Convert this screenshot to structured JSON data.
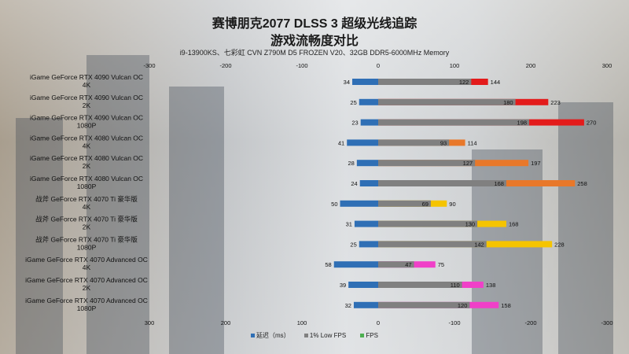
{
  "title_line1": "赛博朋克2077 DLSS 3 超级光线追踪",
  "title_line2": "游戏流畅度对比",
  "subtitle": "i9-13900KS、七彩虹 CVN Z790M D5 FROZEN V20、32GB DDR5-6000MHz Memory",
  "chart_data": {
    "type": "bar",
    "orientation": "horizontal",
    "layout": "diverging, latency drawn to the left of zero, 1% Low FPS and FPS drawn to the right (axis tick labels mirrored)",
    "categories": [
      {
        "line1": "iGame GeForce RTX 4090 Vulcan OC",
        "line2": "4K"
      },
      {
        "line1": "iGame GeForce RTX 4090 Vulcan OC",
        "line2": "2K"
      },
      {
        "line1": "iGame GeForce RTX 4090 Vulcan OC",
        "line2": "1080P"
      },
      {
        "line1": "iGame GeForce RTX 4080 Vulcan OC",
        "line2": "4K"
      },
      {
        "line1": "iGame GeForce RTX 4080 Vulcan OC",
        "line2": "2K"
      },
      {
        "line1": "iGame GeForce RTX 4080 Vulcan OC",
        "line2": "1080P"
      },
      {
        "line1": "战斧 GeForce RTX 4070 Ti 豪华版",
        "line2": "4K"
      },
      {
        "line1": "战斧 GeForce RTX 4070 Ti 豪华版",
        "line2": "2K"
      },
      {
        "line1": "战斧 GeForce RTX 4070 Ti 豪华版",
        "line2": "1080P"
      },
      {
        "line1": "iGame GeForce RTX 4070 Advanced OC",
        "line2": "4K"
      },
      {
        "line1": "iGame GeForce RTX 4070 Advanced OC",
        "line2": "2K"
      },
      {
        "line1": "iGame GeForce RTX 4070 Advanced OC",
        "line2": "1080P"
      }
    ],
    "series": [
      {
        "name": "延迟（ms）",
        "color": "#2f6fb5",
        "values": [
          34,
          25,
          23,
          41,
          28,
          24,
          50,
          31,
          25,
          58,
          39,
          32
        ]
      },
      {
        "name": "1% Low FPS",
        "color": "#808080",
        "values": [
          122,
          180,
          198,
          93,
          127,
          168,
          69,
          130,
          142,
          47,
          110,
          120
        ]
      },
      {
        "name": "FPS",
        "values": [
          144,
          223,
          270,
          114,
          197,
          258,
          90,
          168,
          228,
          75,
          138,
          158
        ]
      }
    ],
    "fps_colors_by_gpu": [
      "#e31b1b",
      "#e31b1b",
      "#e31b1b",
      "#e8782a",
      "#e8782a",
      "#e8782a",
      "#f5c400",
      "#f5c400",
      "#f5c400",
      "#f040c8",
      "#f040c8",
      "#f040c8"
    ],
    "fps_legend_color": "#4caf50",
    "xlim": [
      -300,
      300
    ],
    "top_tick_labels": [
      "-300",
      "-200",
      "-100",
      "0",
      "100",
      "200",
      "300"
    ],
    "bottom_tick_labels": [
      "300",
      "200",
      "100",
      "0",
      "-100",
      "-200",
      "-300"
    ],
    "grid": false,
    "legend_position": "bottom-center"
  },
  "legend": {
    "latency": "延迟（ms）",
    "low": "1% Low FPS",
    "fps": "FPS"
  }
}
